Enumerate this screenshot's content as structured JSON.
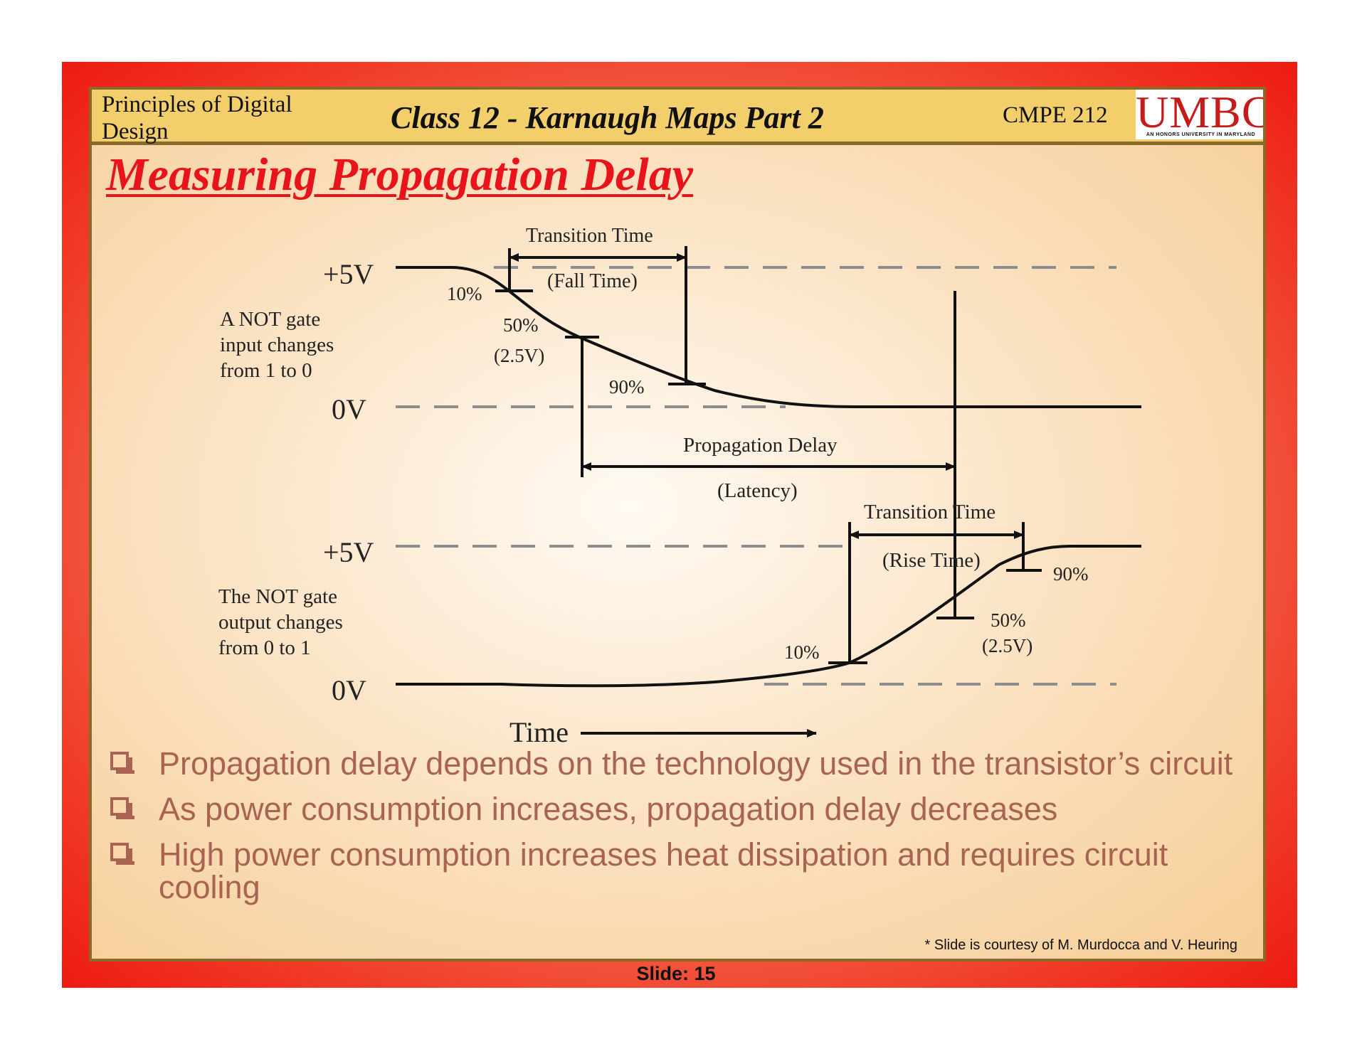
{
  "header": {
    "course_name": "Principles of Digital Design",
    "class_title": "Class 12 - Karnaugh Maps Part 2",
    "course_code": "CMPE 212",
    "logo_text": "UMBC",
    "logo_tagline": "AN HONORS UNIVERSITY IN MARYLAND"
  },
  "slide_title": "Measuring Propagation Delay",
  "diagram": {
    "top_transition_label": "Transition Time",
    "fall_time_label": "(Fall Time)",
    "input_high_label": "+5V",
    "input_low_label": "0V",
    "input_10": "10%",
    "input_50": "50%",
    "input_50_volts": "(2.5V)",
    "input_90": "90%",
    "input_caption": [
      "A NOT gate",
      "input changes",
      "from 1 to 0"
    ],
    "prop_delay_label": "Propagation Delay",
    "latency_label": "(Latency)",
    "bottom_transition_label": "Transition Time",
    "rise_time_label": "(Rise Time)",
    "output_high_label": "+5V",
    "output_low_label": "0V",
    "output_10": "10%",
    "output_50": "50%",
    "output_50_volts": "(2.5V)",
    "output_90": "90%",
    "output_caption": [
      "The NOT gate",
      "output changes",
      "from 0 to 1"
    ],
    "time_label": "Time"
  },
  "bullets": [
    "Propagation delay depends on the technology used in the transistor’s circuit",
    "As power consumption increases, propagation delay decreases",
    "High power consumption increases heat dissipation and requires circuit cooling"
  ],
  "credit": "* Slide is courtesy of  M. Murdocca and V. Heuring",
  "slide_number": "Slide: 15"
}
